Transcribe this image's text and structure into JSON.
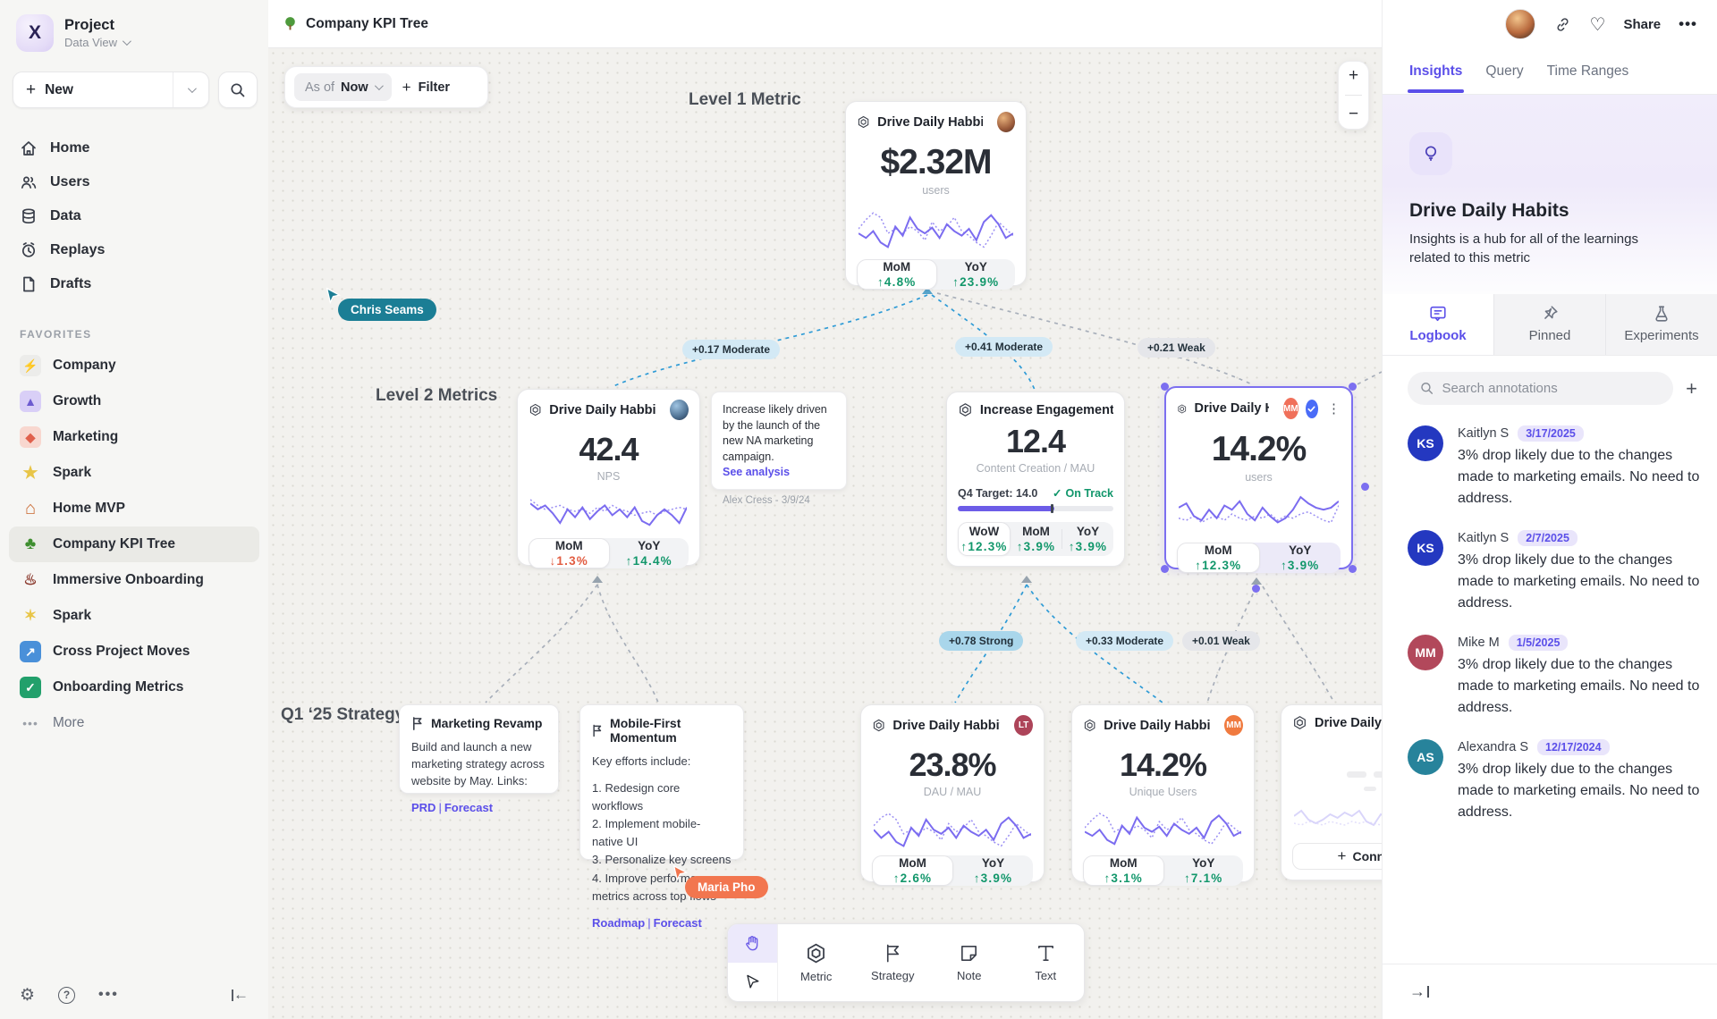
{
  "colors": {
    "accent_purple": "#5B4FE9",
    "spark_purple": "#7B6CF0",
    "selection_purple": "#7C6FF0",
    "positive_green": "#12976B",
    "negative_red": "#E25C41",
    "edge_blue": "#2E9BD6",
    "edge_gray": "#A8AFBA",
    "badge_blue_bg": "#D3E9F5",
    "badge_strong_bg": "#A9D6EB",
    "badge_gray_bg": "#E5E6EA",
    "cursor_chris": "#1B7E95",
    "cursor_maria": "#F2764F",
    "avatar_ks": "#2438C0",
    "avatar_mm_panel": "#B2485B",
    "avatar_as": "#27839B",
    "avatar_lt_card": "#AD4459",
    "avatar_mm_card": "#F0705A",
    "avatar_mm_orange": "#F07A3F"
  },
  "sidebar": {
    "project_title": "Project",
    "project_subtitle": "Data View",
    "new_label": "New",
    "nav": [
      {
        "label": "Home",
        "icon": "home-icon"
      },
      {
        "label": "Users",
        "icon": "users-icon"
      },
      {
        "label": "Data",
        "icon": "database-icon"
      },
      {
        "label": "Replays",
        "icon": "replay-clock-icon"
      },
      {
        "label": "Drafts",
        "icon": "draft-file-icon"
      }
    ],
    "favorites_header": "FAVORITES",
    "favorites": [
      {
        "label": "Company",
        "icon": "lightning-icon",
        "glyph": "⚡"
      },
      {
        "label": "Growth",
        "icon": "rocket-icon",
        "glyph": "▲"
      },
      {
        "label": "Marketing",
        "icon": "confetti-icon",
        "glyph": "◆"
      },
      {
        "label": "Spark",
        "icon": "star-icon",
        "glyph": "★"
      },
      {
        "label": "Home MVP",
        "icon": "house-icon",
        "glyph": "⌂"
      },
      {
        "label": "Company KPI Tree",
        "icon": "tree-icon",
        "glyph": "♣"
      },
      {
        "label": "Immersive Onboarding",
        "icon": "train-icon",
        "glyph": "♨"
      },
      {
        "label": "Spark",
        "icon": "sparkles-icon",
        "glyph": "✶"
      },
      {
        "label": "Cross Project Moves",
        "icon": "arrow-up-right-icon",
        "glyph": "↗"
      },
      {
        "label": "Onboarding Metrics",
        "icon": "check-icon",
        "glyph": "✓"
      }
    ],
    "more_label": "More"
  },
  "topbar": {
    "title": "Company KPI Tree"
  },
  "canvas": {
    "asof_label": "As of",
    "asof_value": "Now",
    "filter_label": "Filter",
    "zoom_in": "+",
    "zoom_out": "−",
    "labels": {
      "level1": "Level 1 Metric",
      "level2": "Level 2 Metrics",
      "q1": "Q1 ‘25 Strategy"
    },
    "edges": [
      {
        "text": "+0.17 Moderate"
      },
      {
        "text": "+0.41 Moderate"
      },
      {
        "text": "+0.21 Weak"
      },
      {
        "text": "+0.78 Strong"
      },
      {
        "text": "+0.33 Moderate"
      },
      {
        "text": "+0.01 Weak"
      }
    ],
    "cursors": [
      {
        "name": "Chris Seams",
        "color": "#1B7E95"
      },
      {
        "name": "Maria Pho",
        "color": "#F2764F"
      }
    ],
    "cards": {
      "level1": {
        "title": "Drive Daily Habbits",
        "value": "$2.32M",
        "unit": "users",
        "stats": [
          {
            "label": "MoM",
            "value": "↑4.8%"
          },
          {
            "label": "YoY",
            "value": "↑23.9%"
          }
        ]
      },
      "nps": {
        "title": "Drive Daily Habbits",
        "value": "42.4",
        "unit": "NPS",
        "stats": [
          {
            "label": "MoM",
            "value": "↓1.3%"
          },
          {
            "label": "YoY",
            "value": "↑14.4%"
          }
        ]
      },
      "engagement": {
        "title": "Increase Engagement",
        "value": "12.4",
        "unit": "Content Creation / MAU",
        "target_label": "Q4 Target: 14.0",
        "status": "On Track",
        "progress_pct": 62,
        "stats": [
          {
            "label": "WoW",
            "value": "↑12.3%"
          },
          {
            "label": "MoM",
            "value": "↑3.9%"
          },
          {
            "label": "YoY",
            "value": "↑3.9%"
          }
        ]
      },
      "selected": {
        "title": "Drive Daily Habb..",
        "owner_initials": "MM",
        "value": "14.2%",
        "unit": "users",
        "stats": [
          {
            "label": "MoM",
            "value": "↑12.3%"
          },
          {
            "label": "YoY",
            "value": "↑3.9%"
          }
        ]
      },
      "dau": {
        "title": "Drive Daily Habbits",
        "owner_initials": "LT",
        "value": "23.8%",
        "unit": "DAU / MAU",
        "stats": [
          {
            "label": "MoM",
            "value": "↑2.6%"
          },
          {
            "label": "YoY",
            "value": "↑3.9%"
          }
        ]
      },
      "unique": {
        "title": "Drive Daily Habbits",
        "owner_initials": "MM",
        "value": "14.2%",
        "unit": "Unique Users",
        "stats": [
          {
            "label": "MoM",
            "value": "↑3.1%"
          },
          {
            "label": "YoY",
            "value": "↑7.1%"
          }
        ]
      },
      "partial": {
        "title": "Drive Daily Hab",
        "connect_label": "Connect"
      }
    },
    "notes": {
      "analysis": {
        "body": "Increase likely driven by the launch of the new NA marketing campaign.",
        "link": "See analysis",
        "author": "Alex Cress - 3/9/24"
      },
      "marketing": {
        "title": "Marketing Revamp",
        "body": "Build and launch a new marketing strategy across website by May. Links:",
        "link1": "PRD",
        "sep": "|",
        "link2": "Forecast"
      },
      "mobile": {
        "title": "Mobile-First Momentum",
        "intro": "Key efforts include:",
        "items": [
          "1.  Redesign core workflows",
          "2.  Implement mobile-native UI",
          "3.  Personalize key screens",
          "4.  Improve performance metrics across top flows"
        ],
        "link1": "Roadmap",
        "sep": "|",
        "link2": "Forecast"
      }
    },
    "toolbar": [
      {
        "label": "Metric",
        "icon": "hexagon-metric-icon"
      },
      {
        "label": "Strategy",
        "icon": "flag-icon"
      },
      {
        "label": "Note",
        "icon": "sticky-note-icon"
      },
      {
        "label": "Text",
        "icon": "text-icon"
      }
    ]
  },
  "panel": {
    "tabs": [
      {
        "label": "Insights"
      },
      {
        "label": "Query"
      },
      {
        "label": "Time Ranges"
      }
    ],
    "share_label": "Share",
    "title": "Drive Daily Habits",
    "subtitle": "Insights is a hub for all of the learnings related to this metric",
    "subtabs": [
      {
        "label": "Logbook"
      },
      {
        "label": "Pinned"
      },
      {
        "label": "Experiments"
      }
    ],
    "search_placeholder": "Search annotations",
    "add_label": "+",
    "annotations": [
      {
        "initials": "KS",
        "color": "#2438C0",
        "name": "Kaitlyn S",
        "date": "3/17/2025",
        "body": "3% drop likely due to the changes made to marketing emails. No need to address."
      },
      {
        "initials": "KS",
        "color": "#2438C0",
        "name": "Kaitlyn S",
        "date": "2/7/2025",
        "body": "3% drop likely due to the changes made to marketing emails. No need to address."
      },
      {
        "initials": "MM",
        "color": "#B2485B",
        "name": "Mike M",
        "date": "1/5/2025",
        "body": "3% drop likely due to the changes made to marketing emails. No need to address."
      },
      {
        "initials": "AS",
        "color": "#27839B",
        "name": "Alexandra S",
        "date": "12/17/2024",
        "body": "3% drop likely due to the changes made to marketing emails. No need to address."
      }
    ]
  },
  "sparks": {
    "a": {
      "solid": [
        26,
        30,
        24,
        34,
        38,
        20,
        28,
        12,
        22,
        26,
        21,
        30,
        18,
        24,
        28,
        22,
        32,
        16,
        10,
        18,
        30,
        26
      ],
      "dotted": [
        22,
        14,
        8,
        12,
        26,
        22,
        26,
        20,
        24,
        32,
        16,
        24,
        20,
        12,
        24,
        28,
        34,
        38,
        28,
        16,
        22,
        28
      ]
    },
    "b": {
      "solid": [
        14,
        20,
        16,
        24,
        34,
        20,
        28,
        18,
        30,
        22,
        16,
        26,
        20,
        28,
        18,
        32,
        36,
        26,
        20,
        26,
        34,
        18
      ],
      "dotted": [
        10,
        16,
        20,
        18,
        16,
        20,
        22,
        20,
        24,
        18,
        22,
        16,
        20,
        22,
        26,
        24,
        22,
        26,
        22,
        20,
        18,
        20
      ]
    },
    "c": {
      "solid": [
        16,
        12,
        24,
        28,
        18,
        26,
        14,
        18,
        10,
        22,
        28,
        16,
        24,
        30,
        26,
        18,
        6,
        12,
        16,
        18,
        16,
        10
      ],
      "dotted": [
        26,
        28,
        24,
        30,
        26,
        24,
        28,
        22,
        26,
        28,
        24,
        26,
        22,
        28,
        24,
        26,
        22,
        20,
        24,
        28,
        30,
        14
      ]
    },
    "d": {
      "solid": [
        24,
        32,
        26,
        36,
        40,
        22,
        30,
        14,
        24,
        28,
        22,
        32,
        20,
        26,
        30,
        24,
        34,
        18,
        12,
        20,
        32,
        28
      ],
      "dotted": [
        20,
        12,
        8,
        14,
        28,
        24,
        28,
        22,
        26,
        34,
        18,
        26,
        22,
        14,
        26,
        30,
        36,
        40,
        30,
        18,
        24,
        30
      ]
    },
    "e": {
      "solid": [
        20,
        14,
        24,
        28,
        24,
        18,
        22,
        16,
        20,
        14,
        26,
        30,
        18,
        22,
        26,
        20,
        24,
        10,
        18,
        24,
        20,
        26
      ],
      "dotted": [
        28,
        30,
        26,
        28,
        30,
        26,
        28,
        30,
        26,
        28,
        26,
        28,
        30,
        28,
        26,
        28,
        26,
        28,
        30,
        28,
        26,
        28
      ]
    }
  }
}
